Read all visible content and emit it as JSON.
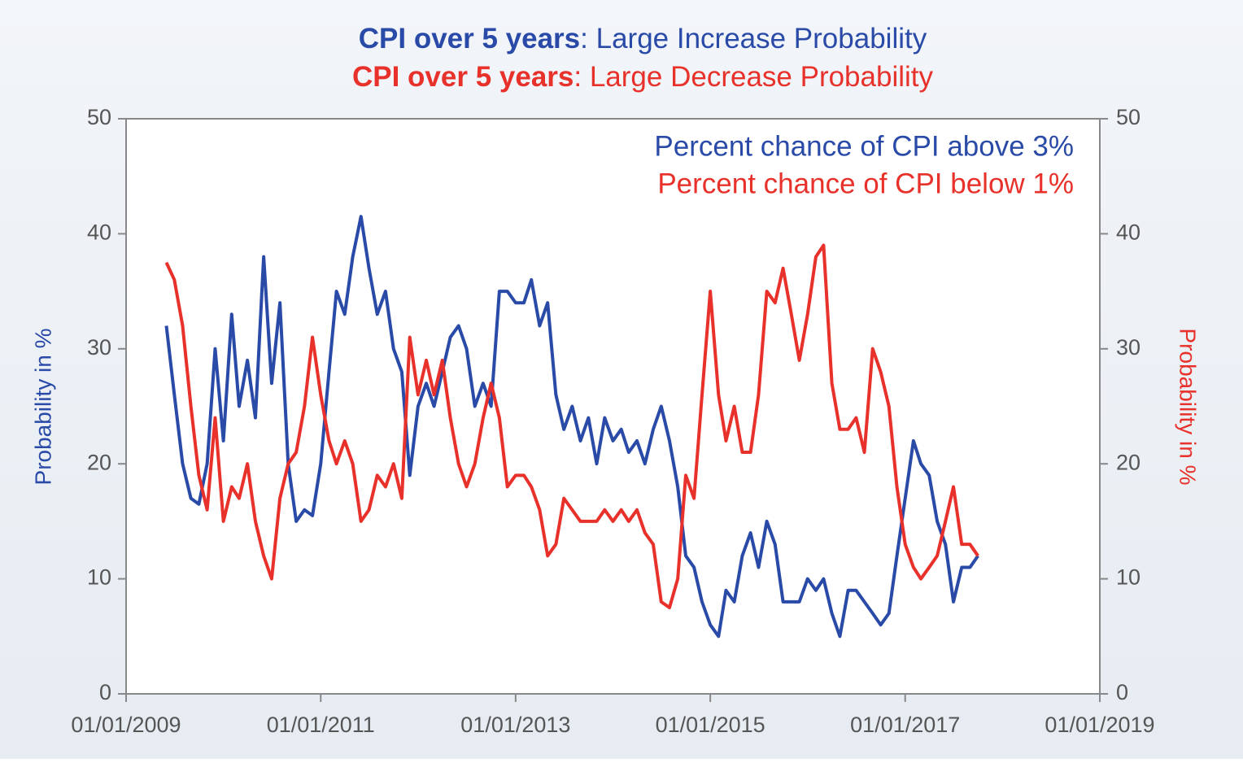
{
  "chart_data": {
    "type": "line",
    "titles": [
      {
        "emphasis": "CPI over 5 years",
        "text": ": Large Increase Probability",
        "color": "#2a4aa8"
      },
      {
        "emphasis": "CPI over 5 years",
        "text": ": Large Decrease Probability",
        "color": "#e8312a"
      }
    ],
    "ylabel": "Probability in %",
    "y2label": "Probability in %",
    "xlim": [
      "2009-01-01",
      "2019-01-01"
    ],
    "xticks": [
      {
        "value": "2009-01-01",
        "label": "01/01/2009"
      },
      {
        "value": "2011-01-01",
        "label": "01/01/2011"
      },
      {
        "value": "2013-01-01",
        "label": "01/01/2013"
      },
      {
        "value": "2015-01-01",
        "label": "01/01/2015"
      },
      {
        "value": "2017-01-01",
        "label": "01/01/2017"
      },
      {
        "value": "2019-01-01",
        "label": "01/01/2019"
      }
    ],
    "ylim": [
      0,
      50
    ],
    "yticks": [
      0,
      10,
      20,
      30,
      40,
      50
    ],
    "y2lim": [
      0,
      50
    ],
    "y2ticks": [
      0,
      10,
      20,
      30,
      40,
      50
    ],
    "grid": false,
    "legend": "upper right",
    "x": [
      "2009-06-01",
      "2009-07-01",
      "2009-08-01",
      "2009-09-01",
      "2009-10-01",
      "2009-11-01",
      "2009-12-01",
      "2010-01-01",
      "2010-02-01",
      "2010-03-01",
      "2010-04-01",
      "2010-05-01",
      "2010-06-01",
      "2010-07-01",
      "2010-08-01",
      "2010-09-01",
      "2010-10-01",
      "2010-11-01",
      "2010-12-01",
      "2011-01-01",
      "2011-02-01",
      "2011-03-01",
      "2011-04-01",
      "2011-05-01",
      "2011-06-01",
      "2011-07-01",
      "2011-08-01",
      "2011-09-01",
      "2011-10-01",
      "2011-11-01",
      "2011-12-01",
      "2012-01-01",
      "2012-02-01",
      "2012-03-01",
      "2012-04-01",
      "2012-05-01",
      "2012-06-01",
      "2012-07-01",
      "2012-08-01",
      "2012-09-01",
      "2012-10-01",
      "2012-11-01",
      "2012-12-01",
      "2013-01-01",
      "2013-02-01",
      "2013-03-01",
      "2013-04-01",
      "2013-05-01",
      "2013-06-01",
      "2013-07-01",
      "2013-08-01",
      "2013-09-01",
      "2013-10-01",
      "2013-11-01",
      "2013-12-01",
      "2014-01-01",
      "2014-02-01",
      "2014-03-01",
      "2014-04-01",
      "2014-05-01",
      "2014-06-01",
      "2014-07-01",
      "2014-08-01",
      "2014-09-01",
      "2014-10-01",
      "2014-11-01",
      "2014-12-01",
      "2015-01-01",
      "2015-02-01",
      "2015-03-01",
      "2015-04-01",
      "2015-05-01",
      "2015-06-01",
      "2015-07-01",
      "2015-08-01",
      "2015-09-01",
      "2015-10-01",
      "2015-11-01",
      "2015-12-01",
      "2016-01-01",
      "2016-02-01",
      "2016-03-01",
      "2016-04-01",
      "2016-05-01",
      "2016-06-01",
      "2016-07-01",
      "2016-08-01",
      "2016-09-01",
      "2016-10-01",
      "2016-11-01",
      "2016-12-01",
      "2017-01-01",
      "2017-02-01",
      "2017-03-01",
      "2017-04-01",
      "2017-05-01",
      "2017-06-01",
      "2017-07-01",
      "2017-08-01",
      "2017-09-01",
      "2017-10-01"
    ],
    "series": [
      {
        "name": "Percent chance of CPI above 3%",
        "color": "#2a4aa8",
        "values": [
          32,
          26,
          20,
          17,
          16.5,
          20,
          30,
          22,
          33,
          25,
          29,
          24,
          38,
          27,
          34,
          20,
          15,
          16,
          15.5,
          20,
          28,
          35,
          33,
          38,
          41.5,
          37,
          33,
          35,
          30,
          28,
          19,
          25,
          27,
          25,
          28,
          31,
          32,
          30,
          25,
          27,
          25,
          35,
          35,
          34,
          34,
          36,
          32,
          34,
          26,
          23,
          25,
          22,
          24,
          20,
          24,
          22,
          23,
          21,
          22,
          20,
          23,
          25,
          22,
          18,
          12,
          11,
          8,
          6,
          5,
          9,
          8,
          12,
          14,
          11,
          15,
          13,
          8,
          8,
          8,
          10,
          9,
          10,
          7,
          5,
          9,
          9,
          8,
          7,
          6,
          7,
          12,
          17,
          22,
          20,
          19,
          15,
          13,
          8,
          11,
          11,
          12
        ]
      },
      {
        "name": "Percent chance of CPI below 1%",
        "color": "#e8312a",
        "axis": "y2",
        "values": [
          37.5,
          36,
          32,
          25,
          19,
          16,
          24,
          15,
          18,
          17,
          20,
          15,
          12,
          10,
          17,
          20,
          21,
          25,
          31,
          26,
          22,
          20,
          22,
          20,
          15,
          16,
          19,
          18,
          20,
          17,
          31,
          26,
          29,
          26,
          29,
          24,
          20,
          18,
          20,
          24,
          27,
          24,
          18,
          19,
          19,
          18,
          16,
          12,
          13,
          17,
          16,
          15,
          15,
          15,
          16,
          15,
          16,
          15,
          16,
          14,
          13,
          8,
          7.5,
          10,
          19,
          17,
          26,
          35,
          26,
          22,
          25,
          21,
          21,
          26,
          35,
          34,
          37,
          33,
          29,
          33,
          38,
          39,
          27,
          23,
          23,
          24,
          21,
          30,
          28,
          25,
          18,
          13,
          11,
          10,
          11,
          12,
          15,
          18,
          13,
          13,
          12
        ]
      }
    ]
  }
}
